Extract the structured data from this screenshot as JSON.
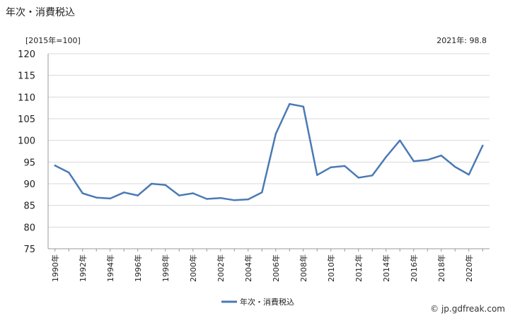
{
  "header": {
    "title": "年次・消費税込",
    "unit": "[2015年=100]",
    "note": "2021年: 98.8"
  },
  "footer": {
    "credit": "© jp.gdfreak.com"
  },
  "colors": {
    "line": "#4a7ab5",
    "grid": "#d9d9d9",
    "axis": "#999999"
  },
  "chart_data": {
    "type": "line",
    "title": "",
    "xlabel": "",
    "ylabel": "",
    "ylim": [
      75,
      120
    ],
    "yticks": [
      75,
      80,
      85,
      90,
      95,
      100,
      105,
      110,
      115,
      120
    ],
    "grid": true,
    "legend": "bottom-center",
    "x": [
      1990,
      1991,
      1992,
      1993,
      1994,
      1995,
      1996,
      1997,
      1998,
      1999,
      2000,
      2001,
      2002,
      2003,
      2004,
      2005,
      2006,
      2007,
      2008,
      2009,
      2010,
      2011,
      2012,
      2013,
      2014,
      2015,
      2016,
      2017,
      2018,
      2019,
      2020,
      2021
    ],
    "x_tick_labels": [
      "1990年",
      "1992年",
      "1994年",
      "1996年",
      "1998年",
      "2000年",
      "2002年",
      "2004年",
      "2006年",
      "2008年",
      "2010年",
      "2012年",
      "2014年",
      "2016年",
      "2018年",
      "2020年"
    ],
    "series": [
      {
        "name": "年次・消費税込",
        "values": [
          94.2,
          92.6,
          87.8,
          86.8,
          86.6,
          88.0,
          87.3,
          90.0,
          89.7,
          87.3,
          87.8,
          86.5,
          86.7,
          86.2,
          86.4,
          88.0,
          101.5,
          108.4,
          107.8,
          92.0,
          93.8,
          94.1,
          91.4,
          91.9,
          96.2,
          100.0,
          95.2,
          95.5,
          96.5,
          93.9,
          92.1,
          98.8
        ]
      }
    ]
  }
}
